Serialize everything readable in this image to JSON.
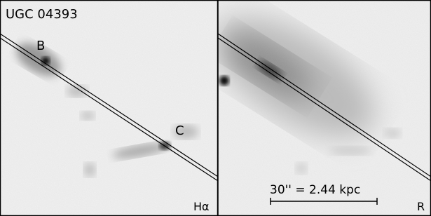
{
  "left_panel": {
    "title": "UGC 04393",
    "labels": [
      "B",
      "C"
    ],
    "band": "Hα"
  },
  "right_panel": {
    "scale_bar": "30'' = 2.44 kpc",
    "band": "R"
  }
}
